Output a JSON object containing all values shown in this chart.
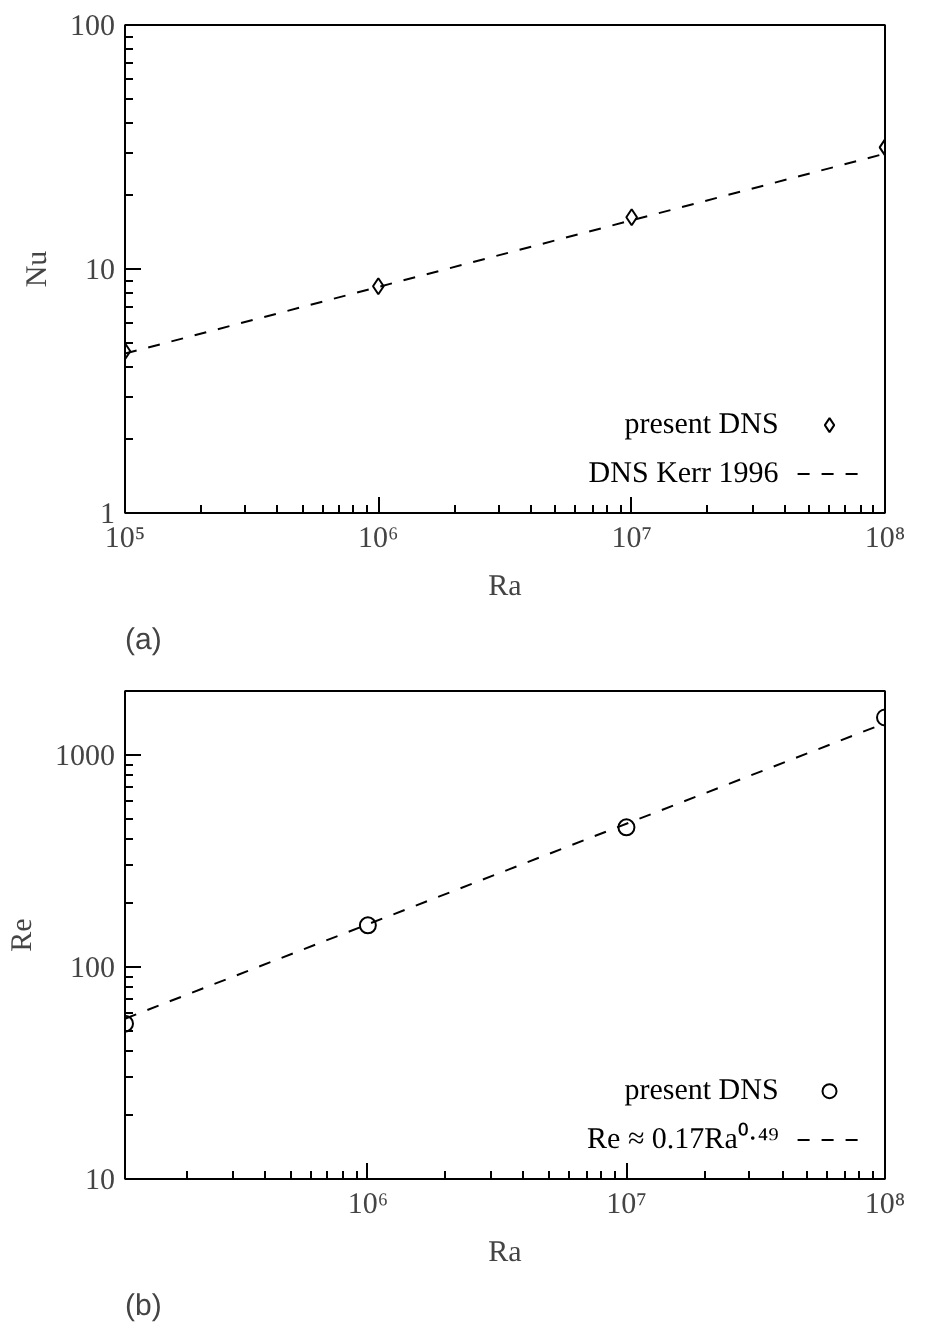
{
  "chart_data": [
    {
      "type": "scatter",
      "xlabel": "Ra",
      "ylabel": "Nu",
      "annotations": [
        "(a)"
      ],
      "log": "xy",
      "legend": "bottom right",
      "grid": false,
      "xlim": [
        100000,
        100000000
      ],
      "ylim": [
        1,
        100
      ],
      "xticks": [
        {
          "value": 100000,
          "label": "10⁵"
        },
        {
          "value": 1000000,
          "label": "10⁶"
        },
        {
          "value": 10000000,
          "label": "10⁷"
        },
        {
          "value": 100000000,
          "label": "10⁸"
        }
      ],
      "yticks": [
        1,
        10,
        100
      ],
      "x": [
        100000,
        1000000,
        10000000,
        100000000
      ],
      "series": [
        {
          "name": "present DNS",
          "type": "scatter",
          "marker": "diamond",
          "color": "#000000",
          "values": [
            4.6,
            8.5,
            16.3,
            31.5
          ]
        },
        {
          "name": "DNS Kerr 1996",
          "type": "line",
          "line_style": "dashed",
          "marker": "none",
          "color": "#000000",
          "x": [
            100000,
            100000000
          ],
          "values": [
            4.5,
            29.7
          ]
        }
      ]
    },
    {
      "type": "scatter",
      "xlabel": "Ra",
      "ylabel": "Re",
      "annotations": [
        "(b)"
      ],
      "log": "xy",
      "legend": "bottom right",
      "grid": false,
      "xlim": [
        115000,
        100000000
      ],
      "ylim": [
        10,
        2000
      ],
      "xticks": [
        {
          "value": 1000000,
          "label": "10⁶"
        },
        {
          "value": 10000000,
          "label": "10⁷"
        },
        {
          "value": 100000000,
          "label": "10⁸"
        }
      ],
      "yticks": [
        10,
        100,
        1000
      ],
      "x": [
        115000,
        1000000,
        10000000,
        100000000
      ],
      "series": [
        {
          "name": "present DNS",
          "type": "scatter",
          "marker": "circle",
          "color": "#000000",
          "values": [
            54,
            157,
            455,
            1500
          ]
        },
        {
          "name": "Re ≈ 0.17Ra⁰·⁴⁹",
          "type": "line",
          "line_style": "dashed",
          "marker": "none",
          "color": "#000000",
          "x": [
            115000,
            100000000
          ],
          "values": [
            57,
            1410
          ]
        }
      ]
    }
  ]
}
